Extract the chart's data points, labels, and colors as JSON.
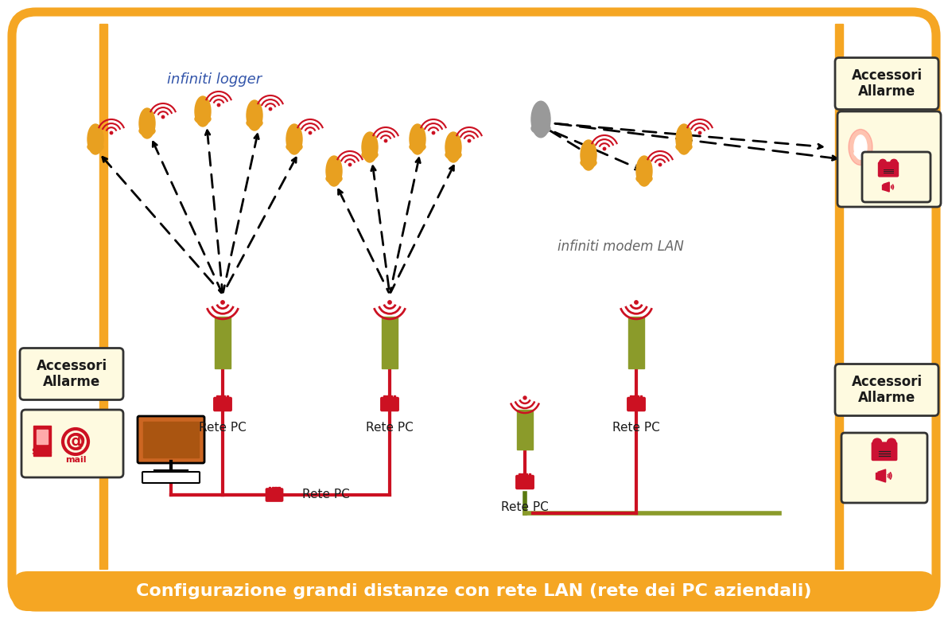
{
  "title": "Configurazione grandi distanze con rete LAN (rete dei PC aziendali)",
  "title_color": "#FFFFFF",
  "title_bg": "#F5A623",
  "border_color": "#F5A623",
  "bg_color": "#FFFFFF",
  "inner_bg": "#FFFFFF",
  "label_infiniti_logger": "infiniti logger",
  "label_infiniti_modem": "infiniti modem LAN",
  "label_rete_pc": "Rete PC",
  "orange_color": "#F5A623",
  "red_color": "#CC1122",
  "green_color": "#8B9B2A",
  "dark_color": "#1A1A1A",
  "cream_color": "#FEFAE0",
  "logger_color": "#E8A020",
  "gray_logger_color": "#999999"
}
